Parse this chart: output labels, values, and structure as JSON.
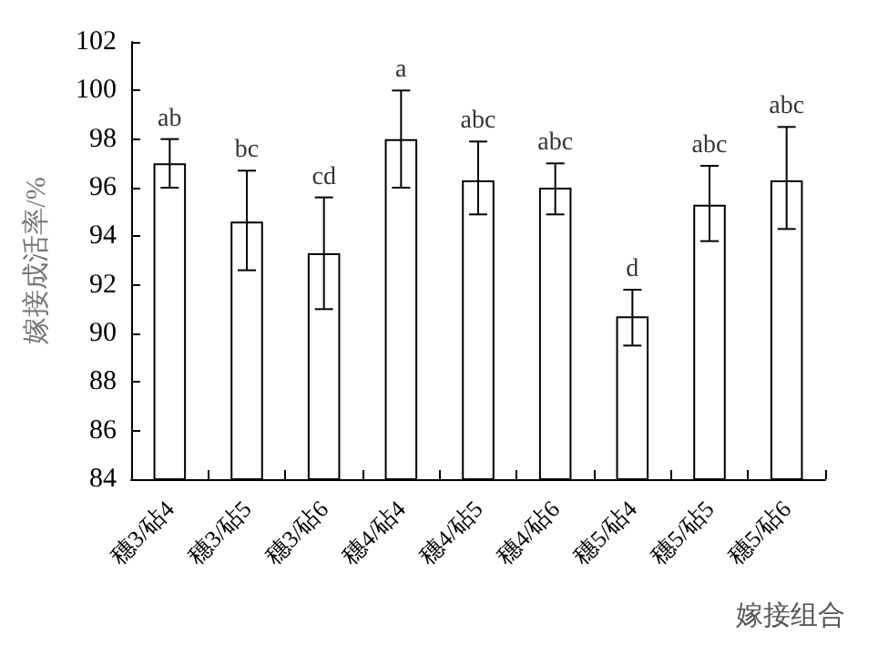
{
  "chart_data": {
    "type": "bar",
    "ylabel": "嫁接成活率/%",
    "xlabel": "嫁接组合",
    "categories": [
      "穗3/砧4",
      "穗3/砧5",
      "穗3/砧6",
      "穗4/砧4",
      "穗4/砧5",
      "穗4/砧6",
      "穗5/砧4",
      "穗5/砧5",
      "穗5/砧6"
    ],
    "values": [
      97.0,
      94.6,
      93.3,
      98.0,
      96.3,
      96.0,
      90.7,
      95.3,
      96.3
    ],
    "errors": [
      [
        96.0,
        98.0
      ],
      [
        92.6,
        96.7
      ],
      [
        91.0,
        95.6
      ],
      [
        96.0,
        100.0
      ],
      [
        94.9,
        97.9
      ],
      [
        94.9,
        97.0
      ],
      [
        89.5,
        91.8
      ],
      [
        93.8,
        96.9
      ],
      [
        94.3,
        98.5
      ]
    ],
    "color": "#ffffff",
    "ylim": [
      84,
      102
    ],
    "yticks": [
      84,
      86,
      88,
      90,
      92,
      94,
      96,
      98,
      100,
      102
    ],
    "grid": false,
    "annotations": [
      {
        "text": "ab",
        "x": "穗3/砧4",
        "y": 98.0
      },
      {
        "text": "bc",
        "x": "穗3/砧5",
        "y": 96.7
      },
      {
        "text": "cd",
        "x": "穗3/砧6",
        "y": 95.6
      },
      {
        "text": "a",
        "x": "穗4/砧4",
        "y": 100.0
      },
      {
        "text": "abc",
        "x": "穗4/砧5",
        "y": 97.9
      },
      {
        "text": "abc",
        "x": "穗4/砧6",
        "y": 97.0
      },
      {
        "text": "d",
        "x": "穗5/砧4",
        "y": 91.8
      },
      {
        "text": "abc",
        "x": "穗5/砧5",
        "y": 96.9
      },
      {
        "text": "abc",
        "x": "穗5/砧6",
        "y": 98.5
      }
    ]
  }
}
